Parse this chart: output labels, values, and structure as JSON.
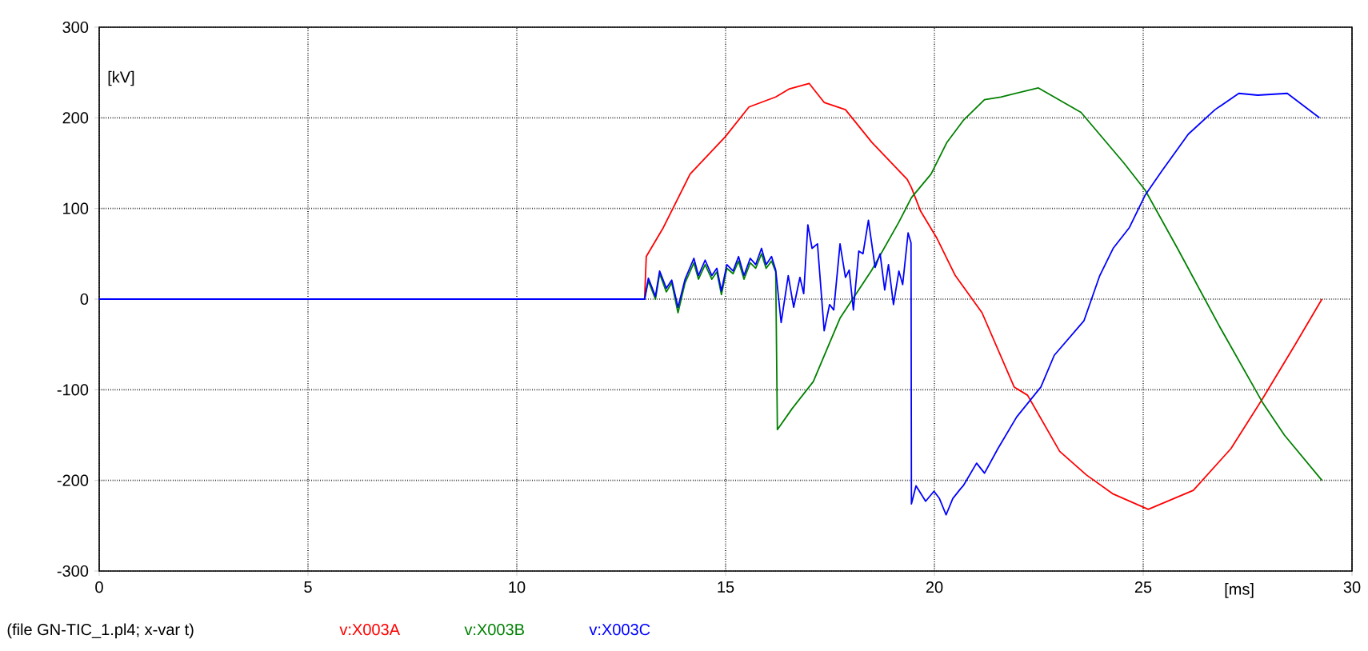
{
  "chart_data": {
    "type": "line",
    "xlabel": "[ms]",
    "ylabel": "[kV]",
    "xlim": [
      0,
      30
    ],
    "ylim": [
      -300,
      300
    ],
    "xticks": [
      0,
      5,
      10,
      15,
      20,
      25,
      30
    ],
    "yticks": [
      -300,
      -200,
      -100,
      0,
      100,
      200,
      300
    ],
    "grid": true,
    "legend": "bottom left",
    "annotations": [
      "(file GN-TIC_1.pl4; x-var t)"
    ],
    "series": [
      {
        "name": "v:X003A",
        "color": "#ff0000",
        "x": [
          0,
          13.06,
          13.1,
          13.51,
          14.15,
          14.99,
          15.56,
          16.2,
          16.53,
          17.0,
          17.36,
          17.87,
          18.5,
          19.35,
          19.45,
          19.67,
          20.05,
          20.5,
          21.14,
          21.91,
          22.23,
          23.0,
          23.64,
          24.28,
          25.12,
          26.2,
          27.1,
          27.87,
          28.64,
          29.28
        ],
        "values": [
          0,
          0,
          47,
          79,
          138,
          179,
          212,
          223,
          232,
          238,
          217,
          209,
          173,
          132,
          123,
          97,
          68,
          26,
          -15,
          -97,
          -106,
          -168,
          -194,
          -215,
          -232,
          -211,
          -165,
          -109,
          -50,
          0
        ]
      },
      {
        "name": "v:X003B",
        "color": "#008000",
        "x": [
          0,
          13.06,
          13.15,
          13.32,
          13.42,
          13.58,
          13.71,
          13.86,
          14.03,
          14.24,
          14.35,
          14.51,
          14.67,
          14.79,
          14.9,
          15.03,
          15.18,
          15.31,
          15.44,
          15.59,
          15.72,
          15.86,
          15.97,
          16.1,
          16.2,
          16.24,
          16.59,
          17.1,
          17.74,
          18.5,
          19.15,
          19.45,
          19.92,
          20.3,
          20.69,
          21.2,
          21.59,
          22.49,
          23.51,
          24.54,
          25.05,
          25.82,
          26.85,
          27.87,
          28.38,
          29.28
        ],
        "values": [
          0,
          0,
          20,
          0,
          28,
          8,
          18,
          -15,
          18,
          40,
          22,
          38,
          22,
          30,
          5,
          34,
          28,
          42,
          22,
          40,
          34,
          50,
          34,
          42,
          30,
          -144,
          -121,
          -91,
          -21,
          32,
          85,
          112,
          138,
          173,
          197,
          220,
          223,
          233,
          206,
          150,
          120,
          56,
          -32,
          -115,
          -150,
          -200
        ]
      },
      {
        "name": "v:X003C",
        "color": "#0000ff",
        "x": [
          0,
          13.06,
          13.15,
          13.32,
          13.42,
          13.58,
          13.71,
          13.86,
          14.03,
          14.24,
          14.35,
          14.51,
          14.67,
          14.79,
          14.9,
          15.03,
          15.18,
          15.31,
          15.44,
          15.59,
          15.72,
          15.86,
          15.97,
          16.1,
          16.2,
          16.33,
          16.5,
          16.63,
          16.78,
          16.87,
          16.97,
          17.07,
          17.2,
          17.36,
          17.49,
          17.59,
          17.74,
          17.87,
          17.96,
          18.06,
          18.19,
          18.29,
          18.42,
          18.58,
          18.7,
          18.81,
          18.9,
          19.02,
          19.15,
          19.24,
          19.37,
          19.44,
          19.45,
          19.56,
          19.79,
          19.99,
          20.12,
          20.28,
          20.44,
          20.63,
          20.69,
          21.01,
          21.2,
          21.52,
          21.97,
          22.55,
          22.87,
          23.58,
          23.96,
          24.28,
          24.67,
          25.05,
          25.44,
          26.08,
          26.72,
          27.29,
          27.74,
          28.45,
          29.22
        ],
        "values": [
          0,
          0,
          23,
          3,
          31,
          12,
          21,
          -9,
          22,
          45,
          26,
          43,
          26,
          34,
          9,
          38,
          31,
          47,
          26,
          45,
          38,
          56,
          38,
          47,
          32,
          -26,
          26,
          -9,
          24,
          6,
          82,
          56,
          61,
          -35,
          -6,
          -12,
          61,
          24,
          32,
          -12,
          53,
          50,
          87,
          35,
          50,
          10,
          38,
          -6,
          31,
          16,
          73,
          62,
          -226,
          -206,
          -223,
          -212,
          -220,
          -238,
          -220,
          -209,
          -206,
          -181,
          -192,
          -165,
          -130,
          -97,
          -62,
          -24,
          26,
          56,
          79,
          115,
          141,
          182,
          209,
          227,
          225,
          227,
          200
        ]
      }
    ]
  }
}
